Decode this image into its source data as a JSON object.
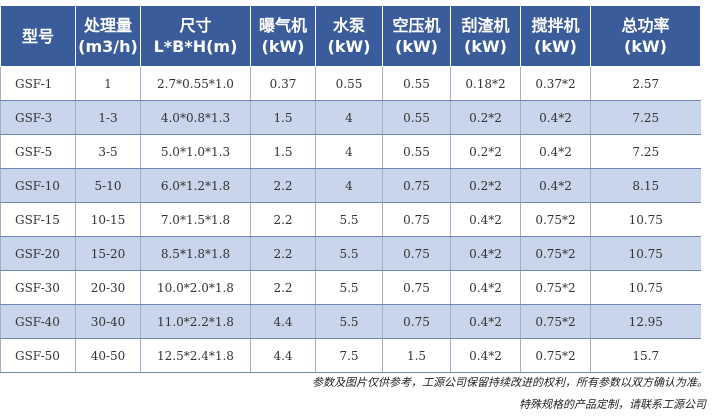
{
  "table": {
    "header": [
      [
        "型号"
      ],
      [
        "处理量",
        "(m3/h)"
      ],
      [
        "尺寸",
        "L*B*H(m)"
      ],
      [
        "曝气机",
        "(kW)"
      ],
      [
        "水泵",
        "(kW)"
      ],
      [
        "空压机",
        "(kW)"
      ],
      [
        "刮渣机",
        "(kW)"
      ],
      [
        "搅拌机",
        "(kW)"
      ],
      [
        "总功率",
        "(kW)"
      ]
    ],
    "rows": [
      [
        "GSF-1",
        "1",
        "2.7*0.55*1.0",
        "0.37",
        "0.55",
        "0.55",
        "0.18*2",
        "0.37*2",
        "2.57"
      ],
      [
        "GSF-3",
        "1-3",
        "4.0*0.8*1.3",
        "1.5",
        "4",
        "0.55",
        "0.2*2",
        "0.4*2",
        "7.25"
      ],
      [
        "GSF-5",
        "3-5",
        "5.0*1.0*1.3",
        "1.5",
        "4",
        "0.55",
        "0.2*2",
        "0.4*2",
        "7.25"
      ],
      [
        "GSF-10",
        "5-10",
        "6.0*1.2*1.8",
        "2.2",
        "4",
        "0.75",
        "0.2*2",
        "0.4*2",
        "8.15"
      ],
      [
        "GSF-15",
        "10-15",
        "7.0*1.5*1.8",
        "2.2",
        "5.5",
        "0.75",
        "0.4*2",
        "0.75*2",
        "10.75"
      ],
      [
        "GSF-20",
        "15-20",
        "8.5*1.8*1.8",
        "2.2",
        "5.5",
        "0.75",
        "0.4*2",
        "0.75*2",
        "10.75"
      ],
      [
        "GSF-30",
        "20-30",
        "10.0*2.0*1.8",
        "2.2",
        "5.5",
        "0.75",
        "0.4*2",
        "0.75*2",
        "10.75"
      ],
      [
        "GSF-40",
        "30-40",
        "11.0*2.2*1.8",
        "4.4",
        "5.5",
        "0.75",
        "0.4*2",
        "0.75*2",
        "12.95"
      ],
      [
        "GSF-50",
        "40-50",
        "12.5*2.4*1.8",
        "4.4",
        "7.5",
        "1.5",
        "0.4*2",
        "0.75*2",
        "15.7"
      ]
    ]
  },
  "notes": [
    "参数及图片仅供参考，工源公司保留持续改进的权利，所有参数以双方确认为准。",
    "特殊规格的产品定制，请联系工源公司"
  ]
}
